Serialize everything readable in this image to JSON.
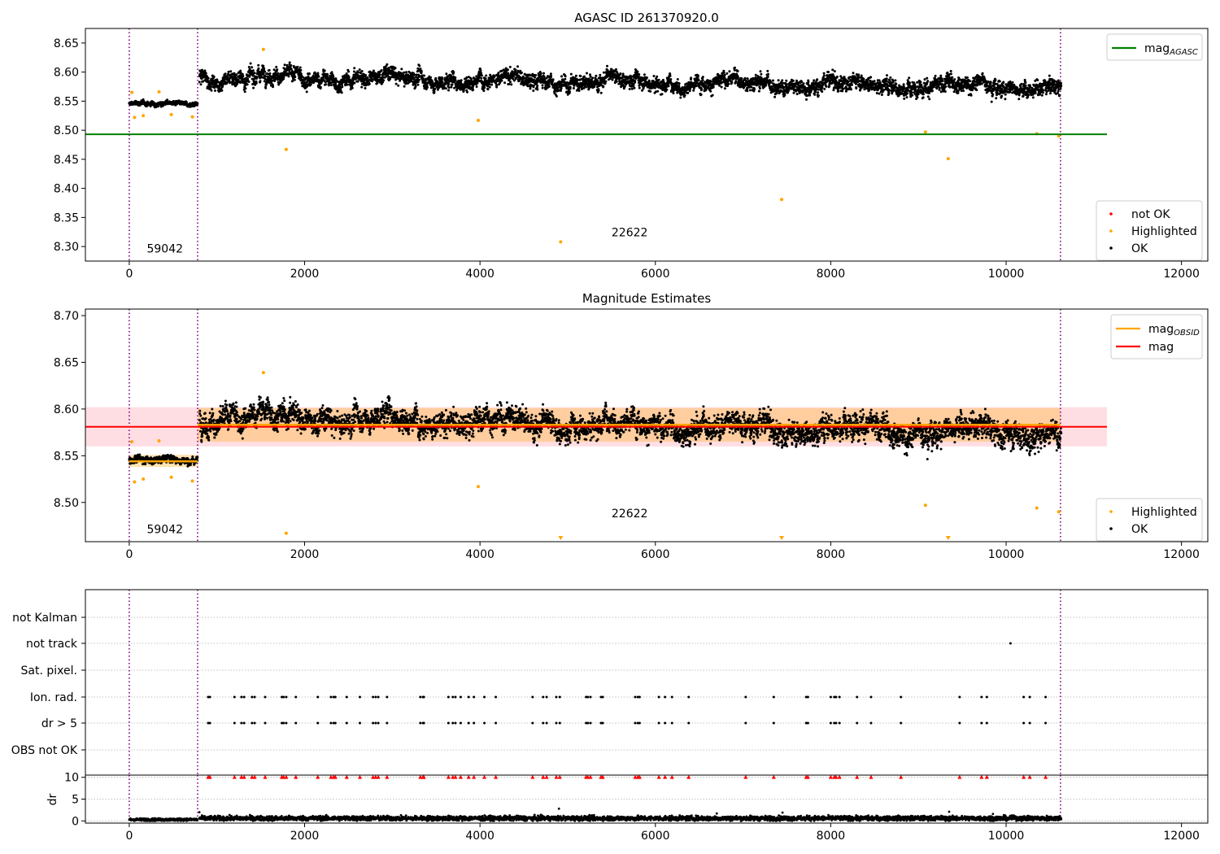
{
  "chart_data": [
    {
      "type": "scatter",
      "title": "AGASC ID 261370920.0",
      "xlim": [
        -500,
        12300
      ],
      "ylim": [
        8.275,
        8.675
      ],
      "xticks": [
        0,
        2000,
        4000,
        6000,
        8000,
        10000,
        12000
      ],
      "xtick_labels": [
        "0",
        "2000",
        "4000",
        "6000",
        "8000",
        "10000",
        "12000"
      ],
      "yticks": [
        8.3,
        8.35,
        8.4,
        8.45,
        8.5,
        8.55,
        8.6,
        8.65
      ],
      "ytick_labels": [
        "8.30",
        "8.35",
        "8.40",
        "8.45",
        "8.50",
        "8.55",
        "8.60",
        "8.65"
      ],
      "vlines": [
        0,
        780,
        10620
      ],
      "obsid_labels": [
        {
          "x": 200,
          "y": 8.29,
          "text": "59042"
        },
        {
          "x": 5500,
          "y": 8.318,
          "text": "22622"
        }
      ],
      "reference_line": {
        "name": "mag_AGASC",
        "y": 8.493,
        "x": [
          -500,
          11150
        ],
        "color": "#008000"
      },
      "legend_top": {
        "placement": "top-right",
        "entries": [
          {
            "label": "mag",
            "sub": "AGASC",
            "kind": "line",
            "color": "#008000"
          }
        ]
      },
      "legend_bottom": {
        "placement": "lower-right",
        "entries": [
          {
            "label": "not OK",
            "kind": "dot",
            "color": "#ff0000"
          },
          {
            "label": "Highlighted",
            "kind": "dot",
            "color": "#ffa500"
          },
          {
            "label": "OK",
            "kind": "dot",
            "color": "#000000"
          }
        ]
      },
      "ok_points": {
        "segments": [
          {
            "x": [
              0,
              780
            ],
            "y": [
              8.545,
              8.545
            ],
            "spread": 0.01
          },
          {
            "x": [
              800,
              10630
            ],
            "y": [
              8.592,
              8.575
            ],
            "spread": 0.035
          }
        ]
      },
      "highlighted": [
        {
          "x": 30,
          "y": 8.565
        },
        {
          "x": 60,
          "y": 8.522
        },
        {
          "x": 160,
          "y": 8.525
        },
        {
          "x": 340,
          "y": 8.566
        },
        {
          "x": 480,
          "y": 8.527
        },
        {
          "x": 720,
          "y": 8.523
        },
        {
          "x": 1530,
          "y": 8.639
        },
        {
          "x": 1790,
          "y": 8.467
        },
        {
          "x": 3980,
          "y": 8.517
        },
        {
          "x": 4920,
          "y": 8.308
        },
        {
          "x": 7440,
          "y": 8.381
        },
        {
          "x": 9080,
          "y": 8.497
        },
        {
          "x": 9340,
          "y": 8.451
        },
        {
          "x": 10350,
          "y": 8.494
        },
        {
          "x": 10600,
          "y": 8.49
        }
      ]
    },
    {
      "type": "scatter",
      "title": "Magnitude Estimates",
      "xlim": [
        -500,
        12300
      ],
      "ylim": [
        8.458,
        8.707
      ],
      "xticks": [
        0,
        2000,
        4000,
        6000,
        8000,
        10000,
        12000
      ],
      "xtick_labels": [
        "0",
        "2000",
        "4000",
        "6000",
        "8000",
        "10000",
        "12000"
      ],
      "yticks": [
        8.5,
        8.55,
        8.6,
        8.65,
        8.7
      ],
      "ytick_labels": [
        "8.50",
        "8.55",
        "8.60",
        "8.65",
        "8.70"
      ],
      "vlines": [
        0,
        780,
        10620
      ],
      "obsid_labels": [
        {
          "x": 200,
          "y": 8.467,
          "text": "59042"
        },
        {
          "x": 5500,
          "y": 8.484,
          "text": "22622"
        }
      ],
      "mag_line": {
        "name": "mag",
        "y": 8.581,
        "band": [
          8.56,
          8.602
        ],
        "x": [
          -500,
          11150
        ],
        "color": "#ff0000"
      },
      "obsid_mags": [
        {
          "x": [
            0,
            780
          ],
          "y": 8.544,
          "band": [
            8.538,
            8.551
          ]
        },
        {
          "x": [
            780,
            10620
          ],
          "y": 8.583,
          "band": [
            8.565,
            8.601
          ]
        }
      ],
      "legend_top": {
        "placement": "top-right",
        "entries": [
          {
            "label": "mag",
            "sub": "OBSID",
            "kind": "line",
            "color": "#ffa500"
          },
          {
            "label": "mag",
            "kind": "line",
            "color": "#ff0000"
          }
        ]
      },
      "legend_bottom": {
        "placement": "lower-right",
        "entries": [
          {
            "label": "Highlighted",
            "kind": "dot",
            "color": "#ffa500"
          },
          {
            "label": "OK",
            "kind": "dot",
            "color": "#000000"
          }
        ]
      },
      "ok_points": {
        "segments": [
          {
            "x": [
              0,
              780
            ],
            "y": [
              8.545,
              8.545
            ],
            "spread": 0.01
          },
          {
            "x": [
              800,
              10630
            ],
            "y": [
              8.592,
              8.575
            ],
            "spread": 0.035
          }
        ]
      },
      "highlighted": [
        {
          "x": 30,
          "y": 8.565
        },
        {
          "x": 60,
          "y": 8.522
        },
        {
          "x": 160,
          "y": 8.525
        },
        {
          "x": 340,
          "y": 8.566
        },
        {
          "x": 480,
          "y": 8.527
        },
        {
          "x": 720,
          "y": 8.523
        },
        {
          "x": 1530,
          "y": 8.639
        },
        {
          "x": 1790,
          "y": 8.467
        },
        {
          "x": 3980,
          "y": 8.517
        },
        {
          "x": 9080,
          "y": 8.497
        },
        {
          "x": 10350,
          "y": 8.494
        },
        {
          "x": 10600,
          "y": 8.49
        }
      ],
      "below_range_markers": [
        4920,
        7440,
        9340
      ]
    },
    {
      "type": "scatter",
      "title": "",
      "xlim": [
        -500,
        12300
      ],
      "categories": [
        "not Kalman",
        "not track",
        "Sat. pixel.",
        "Ion. rad.",
        "dr > 5",
        "OBS not OK"
      ],
      "vlines": [
        0,
        780,
        10620
      ],
      "flags": {
        "not track": [
          10050
        ],
        "Ion. rad.": [
          900,
          920,
          1200,
          1280,
          1310,
          1400,
          1430,
          1550,
          1740,
          1760,
          1790,
          1900,
          2150,
          2300,
          2330,
          2350,
          2480,
          2630,
          2780,
          2810,
          2840,
          2940,
          3320,
          3350,
          3360,
          3640,
          3690,
          3720,
          3780,
          3870,
          3930,
          4050,
          4180,
          4600,
          4720,
          4760,
          4870,
          4910,
          5210,
          5230,
          5260,
          5380,
          5400,
          5770,
          5800,
          5820,
          6040,
          6110,
          6190,
          6380,
          7030,
          7350,
          7720,
          7740,
          8000,
          8040,
          8060,
          8100,
          8300,
          8460,
          8800,
          9470,
          9720,
          9780,
          10200,
          10270,
          10450
        ],
        "dr > 5": [
          900,
          920,
          1200,
          1280,
          1310,
          1400,
          1430,
          1550,
          1740,
          1760,
          1790,
          1900,
          2150,
          2300,
          2330,
          2350,
          2480,
          2630,
          2780,
          2810,
          2840,
          2940,
          3320,
          3350,
          3360,
          3640,
          3690,
          3720,
          3780,
          3870,
          3930,
          4050,
          4180,
          4600,
          4720,
          4760,
          4870,
          4910,
          5210,
          5230,
          5260,
          5380,
          5400,
          5770,
          5800,
          5820,
          6040,
          6110,
          6190,
          6380,
          7030,
          7350,
          7720,
          7740,
          8000,
          8040,
          8060,
          8100,
          8300,
          8460,
          8800,
          9470,
          9720,
          9780,
          10200,
          10270,
          10450
        ]
      }
    },
    {
      "type": "scatter",
      "title": "",
      "ylabel": "dr",
      "xlim": [
        -500,
        12300
      ],
      "ylim": [
        -0.5,
        10.5
      ],
      "xticks": [
        0,
        2000,
        4000,
        6000,
        8000,
        10000,
        12000
      ],
      "xtick_labels": [
        "0",
        "2000",
        "4000",
        "6000",
        "8000",
        "10000",
        "12000"
      ],
      "yticks": [
        0,
        5,
        10
      ],
      "ytick_labels": [
        "0",
        "5",
        "10"
      ],
      "vlines": [
        0,
        780,
        10620
      ],
      "dr_points": {
        "segments": [
          {
            "x": [
              0,
              780
            ],
            "y": 0.3,
            "spread": 0.25
          },
          {
            "x": [
              800,
              10630
            ],
            "y": 0.6,
            "spread": 0.45
          }
        ]
      },
      "dr_outliers": [
        {
          "x": 800,
          "y": 2.0
        },
        {
          "x": 4900,
          "y": 2.8
        },
        {
          "x": 6700,
          "y": 1.7
        },
        {
          "x": 7450,
          "y": 1.9
        },
        {
          "x": 9350,
          "y": 2.1
        },
        {
          "x": 9850,
          "y": 1.6
        }
      ],
      "clipped_markers": [
        900,
        920,
        1200,
        1280,
        1310,
        1400,
        1430,
        1550,
        1740,
        1760,
        1790,
        1900,
        2150,
        2300,
        2330,
        2350,
        2480,
        2630,
        2780,
        2810,
        2840,
        2940,
        3320,
        3350,
        3360,
        3640,
        3690,
        3720,
        3780,
        3870,
        3930,
        4050,
        4180,
        4600,
        4720,
        4760,
        4870,
        4910,
        5210,
        5230,
        5260,
        5380,
        5400,
        5770,
        5800,
        5820,
        6040,
        6110,
        6190,
        6380,
        7030,
        7350,
        7720,
        7740,
        8000,
        8040,
        8060,
        8100,
        8300,
        8460,
        8800,
        9470,
        9720,
        9780,
        10200,
        10270,
        10450
      ]
    }
  ]
}
